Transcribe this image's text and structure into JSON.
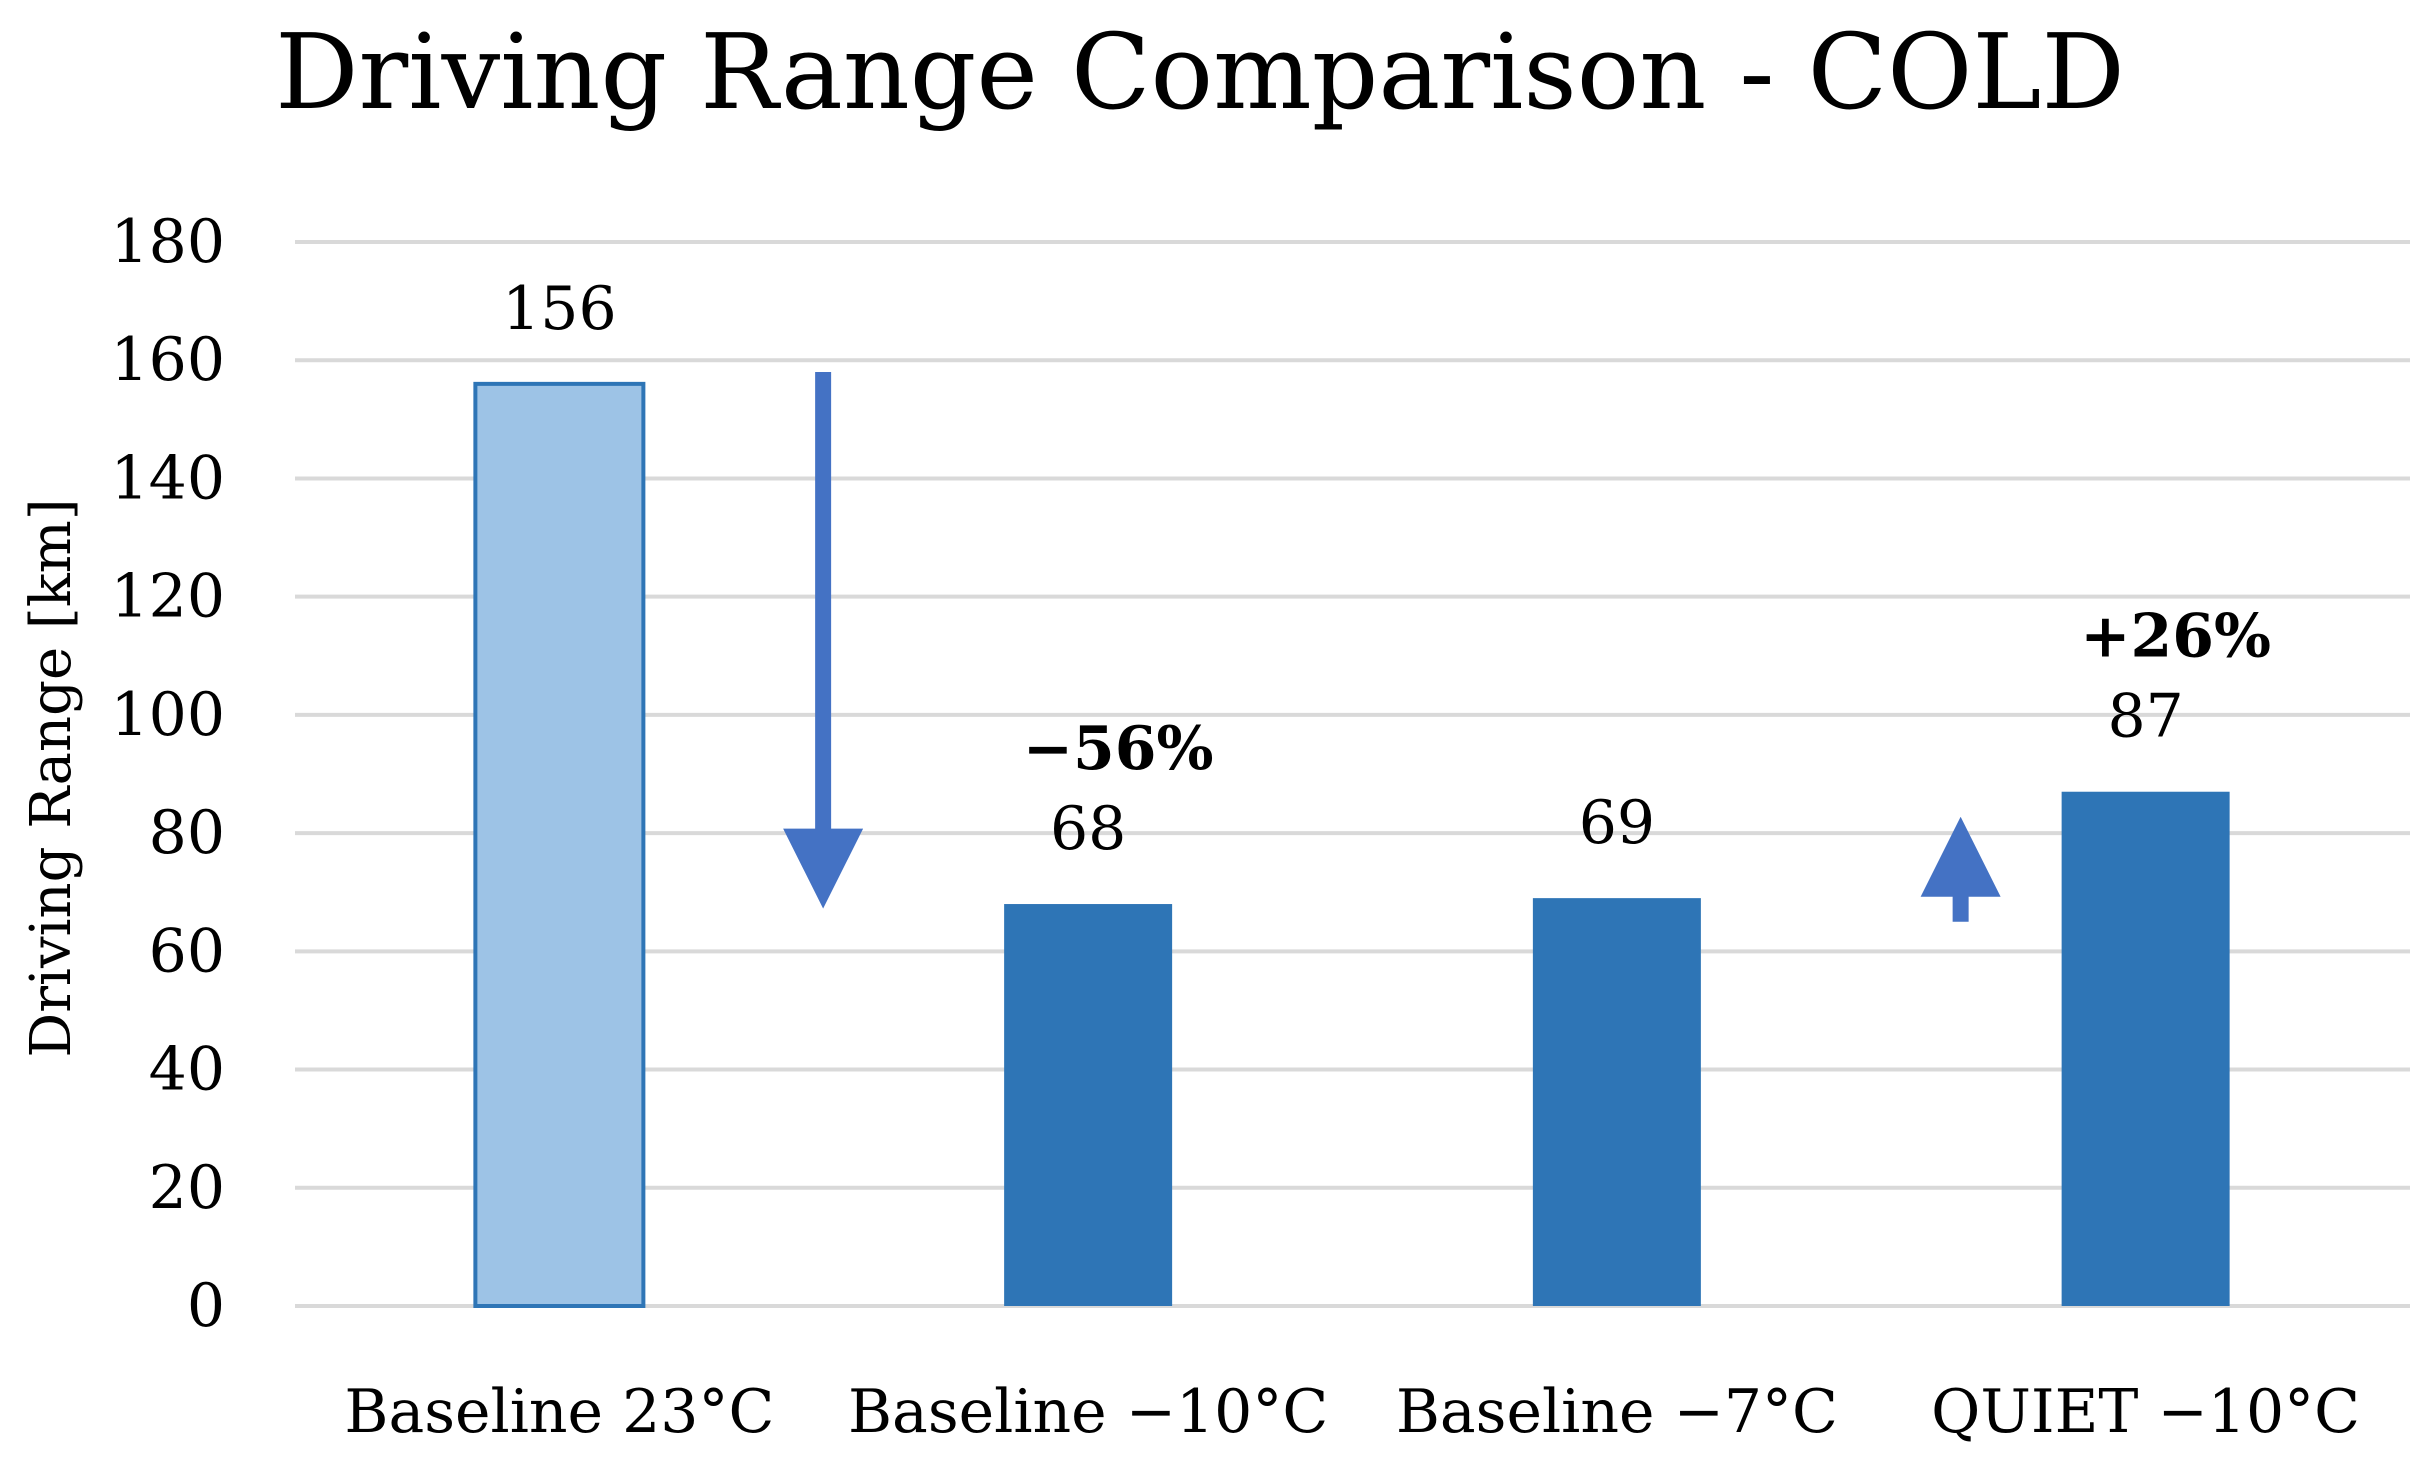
{
  "chart_data": {
    "type": "bar",
    "title": "Driving Range Comparison - COLD",
    "xlabel": "",
    "ylabel": "Driving Range [km]",
    "ylim": [
      0,
      180
    ],
    "yticks": [
      0,
      20,
      40,
      60,
      80,
      100,
      120,
      140,
      160,
      180
    ],
    "grid": true,
    "categories": [
      "Baseline 23°C",
      "Baseline −10°C",
      "Baseline −7°C",
      "QUIET −10°C"
    ],
    "values": [
      156,
      68,
      69,
      87
    ],
    "value_labels": [
      "156",
      "68",
      "69",
      "87"
    ],
    "bar_colors": [
      "#9dc3e6",
      "#2e75b6",
      "#2e75b6",
      "#2e75b6"
    ],
    "arrow_color": "#4472c4",
    "annotations": [
      {
        "text": "−56%",
        "category_index": 1,
        "direction": "down"
      },
      {
        "text": "+26%",
        "category_index": 3,
        "direction": "up"
      }
    ]
  }
}
